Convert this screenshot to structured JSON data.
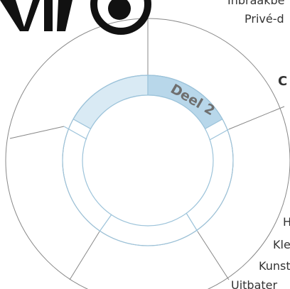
{
  "diagram": {
    "center_label": "Deel 2",
    "labels": [
      "Inbraakbe",
      "Privé-d",
      "C",
      "H",
      "Kle",
      "Kunst",
      "Uitbater"
    ]
  }
}
